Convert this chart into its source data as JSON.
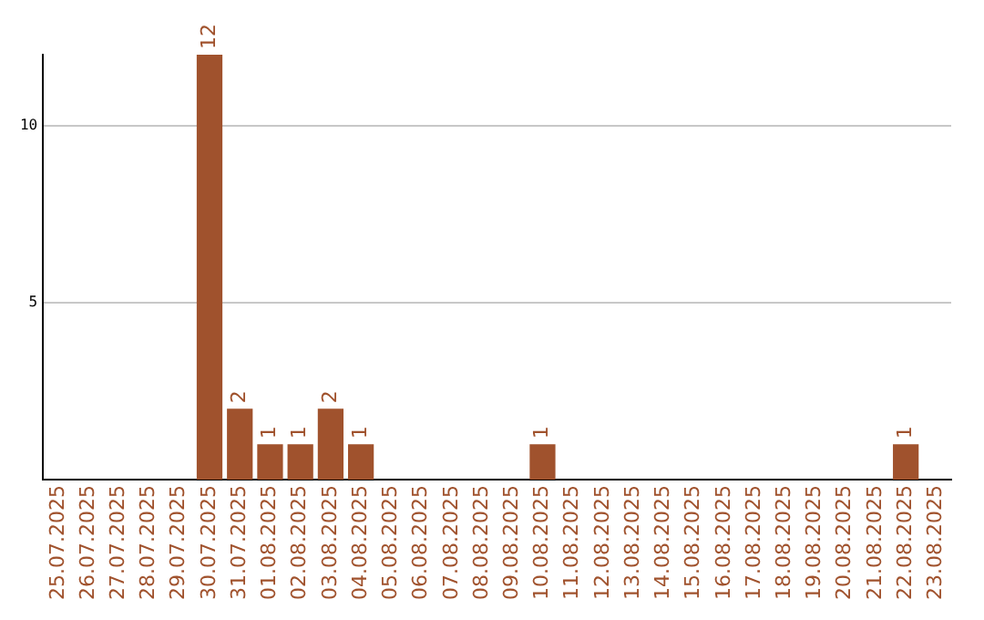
{
  "chart_data": {
    "type": "bar",
    "categories": [
      "25.07.2025",
      "26.07.2025",
      "27.07.2025",
      "28.07.2025",
      "29.07.2025",
      "30.07.2025",
      "31.07.2025",
      "01.08.2025",
      "02.08.2025",
      "03.08.2025",
      "04.08.2025",
      "05.08.2025",
      "06.08.2025",
      "07.08.2025",
      "08.08.2025",
      "09.08.2025",
      "10.08.2025",
      "11.08.2025",
      "12.08.2025",
      "13.08.2025",
      "14.08.2025",
      "15.08.2025",
      "16.08.2025",
      "17.08.2025",
      "18.08.2025",
      "19.08.2025",
      "20.08.2025",
      "21.08.2025",
      "22.08.2025",
      "23.08.2025"
    ],
    "values": [
      0,
      0,
      0,
      0,
      0,
      12,
      2,
      1,
      1,
      2,
      1,
      0,
      0,
      0,
      0,
      0,
      1,
      0,
      0,
      0,
      0,
      0,
      0,
      0,
      0,
      0,
      0,
      0,
      1,
      0
    ],
    "value_labels": [
      null,
      null,
      null,
      null,
      null,
      "12",
      "2",
      "1",
      "1",
      "2",
      "1",
      null,
      null,
      null,
      null,
      null,
      "1",
      null,
      null,
      null,
      null,
      null,
      null,
      null,
      null,
      null,
      null,
      null,
      "1",
      null
    ],
    "color": "#a0522d",
    "ylim": [
      0,
      12
    ],
    "yticks": [
      5,
      10
    ],
    "grid": "y",
    "legend": false
  }
}
